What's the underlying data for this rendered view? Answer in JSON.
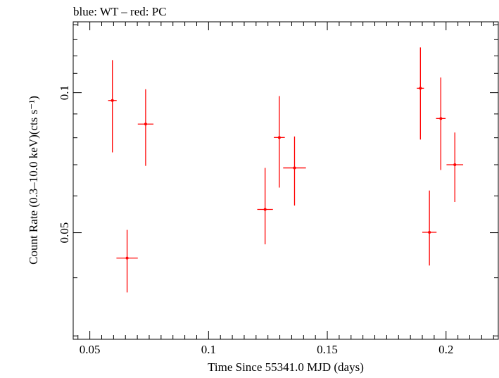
{
  "chart_data": {
    "type": "scatter",
    "title": "blue: WT – red: PC",
    "xlabel": "Time Since 55341.0 MJD (days)",
    "ylabel": "Count Rate (0.3–10.0 keV)(cts s⁻¹)",
    "xlim": [
      0.043,
      0.222
    ],
    "ylim": [
      0.0295,
      0.142
    ],
    "y_scale": "log",
    "x_ticks": [
      {
        "value": 0.05,
        "label": "0.05"
      },
      {
        "value": 0.1,
        "label": "0.1"
      },
      {
        "value": 0.15,
        "label": "0.15"
      },
      {
        "value": 0.2,
        "label": "0.2"
      }
    ],
    "y_ticks": [
      {
        "value": 0.05,
        "label": "0.05"
      },
      {
        "value": 0.1,
        "label": "0.1"
      }
    ],
    "grid": false,
    "colors": {
      "WT": "#0000ff",
      "PC": "#ff0000"
    },
    "series": [
      {
        "name": "PC",
        "color": "#ff0000",
        "points": [
          {
            "x": 0.0595,
            "xerr": 0.0018,
            "y": 0.0962,
            "ylo": 0.0744,
            "yhi": 0.1175
          },
          {
            "x": 0.0657,
            "xerr": 0.0045,
            "y": 0.0441,
            "ylo": 0.0372,
            "yhi": 0.0507
          },
          {
            "x": 0.0735,
            "xerr": 0.0033,
            "y": 0.0856,
            "ylo": 0.0696,
            "yhi": 0.1017
          },
          {
            "x": 0.1238,
            "xerr": 0.0033,
            "y": 0.0561,
            "ylo": 0.0472,
            "yhi": 0.0689
          },
          {
            "x": 0.1298,
            "xerr": 0.0023,
            "y": 0.0801,
            "ylo": 0.0625,
            "yhi": 0.0983
          },
          {
            "x": 0.1362,
            "xerr": 0.0048,
            "y": 0.0689,
            "ylo": 0.0572,
            "yhi": 0.0805
          },
          {
            "x": 0.1892,
            "xerr": 0.0015,
            "y": 0.1022,
            "ylo": 0.0793,
            "yhi": 0.1251
          },
          {
            "x": 0.193,
            "xerr": 0.003,
            "y": 0.0501,
            "ylo": 0.0425,
            "yhi": 0.0616
          },
          {
            "x": 0.1978,
            "xerr": 0.002,
            "y": 0.088,
            "ylo": 0.0682,
            "yhi": 0.1078
          },
          {
            "x": 0.2037,
            "xerr": 0.0035,
            "y": 0.07,
            "ylo": 0.0582,
            "yhi": 0.0821
          }
        ]
      }
    ]
  }
}
